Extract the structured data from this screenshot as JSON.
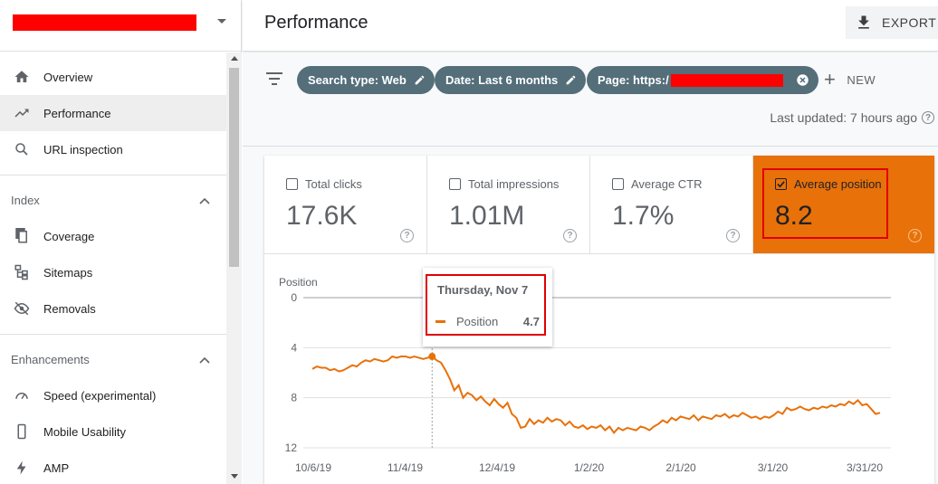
{
  "sidebar": {
    "items": [
      {
        "label": "Overview",
        "icon": "home-icon"
      },
      {
        "label": "Performance",
        "icon": "trending-up-icon",
        "active": true
      },
      {
        "label": "URL inspection",
        "icon": "search-icon"
      }
    ],
    "index_title": "Index",
    "index_items": [
      {
        "label": "Coverage",
        "icon": "copy-icon"
      },
      {
        "label": "Sitemaps",
        "icon": "sitemap-icon"
      },
      {
        "label": "Removals",
        "icon": "eye-off-icon"
      }
    ],
    "enhancements_title": "Enhancements",
    "enhancement_items": [
      {
        "label": "Speed (experimental)",
        "icon": "speedometer-icon"
      },
      {
        "label": "Mobile Usability",
        "icon": "phone-icon"
      },
      {
        "label": "AMP",
        "icon": "bolt-icon"
      }
    ]
  },
  "header": {
    "title": "Performance",
    "export_label": "EXPORT"
  },
  "filters": {
    "chips": [
      {
        "label": "Search type: Web"
      },
      {
        "label": "Date: Last 6 months"
      },
      {
        "label": "Page: https:/"
      }
    ],
    "new_label": "NEW",
    "last_updated": "Last updated: 7 hours ago"
  },
  "metrics": [
    {
      "label": "Total clicks",
      "value": "17.6K",
      "checked": false
    },
    {
      "label": "Total impressions",
      "value": "1.01M",
      "checked": false
    },
    {
      "label": "Average CTR",
      "value": "1.7%",
      "checked": false
    },
    {
      "label": "Average position",
      "value": "8.2",
      "checked": true
    }
  ],
  "colors": {
    "accent": "#e8710a",
    "chip": "#546e7a",
    "redaction": "#ff0000"
  },
  "tooltip": {
    "date": "Thursday, Nov 7",
    "series": "Position",
    "value": "4.7"
  },
  "chart_data": {
    "type": "line",
    "ylabel": "Position",
    "y_reversed": true,
    "ylim": [
      0,
      12
    ],
    "yticks": [
      "0",
      "4",
      "8",
      "12"
    ],
    "xticks": [
      "10/6/19",
      "11/4/19",
      "12/4/19",
      "1/2/20",
      "2/1/20",
      "3/1/20",
      "3/31/20"
    ],
    "series": [
      {
        "name": "Position",
        "color": "#e8710a",
        "values": [
          5.7,
          5.5,
          5.6,
          5.6,
          5.8,
          5.7,
          5.9,
          5.8,
          5.6,
          5.4,
          5.5,
          5.2,
          5.0,
          5.1,
          4.9,
          5.0,
          5.1,
          5.0,
          4.7,
          4.8,
          4.7,
          4.7,
          4.8,
          4.7,
          4.8,
          4.9,
          4.8,
          4.7,
          5.0,
          5.2,
          5.8,
          6.5,
          7.4,
          7.0,
          8.0,
          7.6,
          7.8,
          8.2,
          7.9,
          8.3,
          8.6,
          8.1,
          8.5,
          8.8,
          8.4,
          9.3,
          9.6,
          10.4,
          10.3,
          9.7,
          10.1,
          9.8,
          10.0,
          9.6,
          9.9,
          9.7,
          9.8,
          10.2,
          9.9,
          10.3,
          10.4,
          10.2,
          10.5,
          10.3,
          10.4,
          10.2,
          10.6,
          10.3,
          10.8,
          10.4,
          10.6,
          10.4,
          10.5,
          10.6,
          10.3,
          10.4,
          10.6,
          10.3,
          10.1,
          9.8,
          10.0,
          9.6,
          9.8,
          9.5,
          9.6,
          9.7,
          9.4,
          9.8,
          9.5,
          9.6,
          9.7,
          9.4,
          9.5,
          9.3,
          9.6,
          9.4,
          9.5,
          9.2,
          9.4,
          9.6,
          9.5,
          9.7,
          9.5,
          9.6,
          9.4,
          9.1,
          9.3,
          8.8,
          9.0,
          8.9,
          8.7,
          8.9,
          9.0,
          8.8,
          8.9,
          8.7,
          8.8,
          8.6,
          8.7,
          8.5,
          8.6,
          8.3,
          8.5,
          8.2,
          8.6,
          8.5,
          8.9,
          9.3,
          9.2
        ]
      }
    ],
    "hover_x_label": "11/7/19",
    "hover_value": 4.7
  }
}
